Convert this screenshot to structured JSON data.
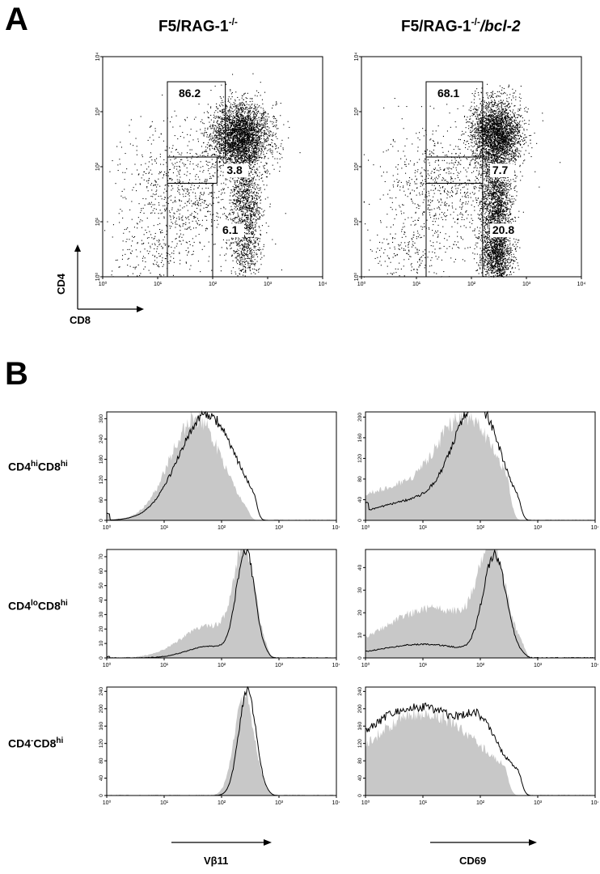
{
  "panels": {
    "a": "A",
    "b": "B"
  },
  "columns": [
    {
      "base": "F5/RAG-1",
      "sup": "-/-",
      "suffix": ""
    },
    {
      "base": "F5/RAG-1",
      "sup": "-/-",
      "suffix": "/bcl-2"
    }
  ],
  "dot_axes": {
    "y": "CD4",
    "x": "CD8"
  },
  "hist_rows": [
    {
      "pre": "CD4",
      "sup1": "hi",
      "mid": "CD8",
      "sup2": "hi"
    },
    {
      "pre": "CD4",
      "sup1": "lo",
      "mid": "CD8",
      "sup2": "hi"
    },
    {
      "pre": "CD4",
      "sup1": "-",
      "mid": "CD8",
      "sup2": "hi"
    }
  ],
  "hist_xlabels": [
    "Vβ11",
    "CD69"
  ],
  "colors": {
    "dots": "#000000",
    "shaded": "#c8c8c8",
    "line": "#000000"
  },
  "chart_data": [
    {
      "type": "scatter",
      "title": "F5/RAG-1-/-",
      "xlabel": "CD8",
      "ylabel": "CD4",
      "scale": "log",
      "xlim": [
        1,
        10000
      ],
      "ylim": [
        1,
        10000
      ],
      "ticks": [
        "10⁰",
        "10¹",
        "10²",
        "10³",
        "10⁴"
      ],
      "gates": [
        {
          "label": "86.2",
          "x": [
            15,
            170
          ],
          "y": [
            150,
            3500
          ]
        },
        {
          "label": "3.8",
          "x": [
            15,
            120
          ],
          "y": [
            50,
            150
          ]
        },
        {
          "label": "6.1",
          "x": [
            15,
            100
          ],
          "y": [
            1,
            50
          ]
        }
      ],
      "clusters": [
        {
          "cx": 2.5,
          "cy": 2.55,
          "sx": 0.26,
          "sy": 0.3,
          "n": 3200
        },
        {
          "cx": 2.6,
          "cy": 1.3,
          "sx": 0.14,
          "sy": 0.45,
          "n": 1000
        },
        {
          "cx": 2.6,
          "cy": 0.4,
          "sx": 0.14,
          "sy": 0.25,
          "n": 300
        },
        {
          "cx": 1.5,
          "cy": 1.5,
          "sx": 0.55,
          "sy": 0.6,
          "n": 800
        },
        {
          "cx": 0.8,
          "cy": 0.4,
          "sx": 0.4,
          "sy": 0.3,
          "n": 180
        }
      ]
    },
    {
      "type": "scatter",
      "title": "F5/RAG-1-/-/bcl-2",
      "xlabel": "CD8",
      "ylabel": "CD4",
      "scale": "log",
      "xlim": [
        1,
        10000
      ],
      "ylim": [
        1,
        10000
      ],
      "ticks": [
        "10⁰",
        "10¹",
        "10²",
        "10³",
        "10⁴"
      ],
      "gates": [
        {
          "label": "68.1",
          "x": [
            15,
            160
          ],
          "y": [
            150,
            3500
          ]
        },
        {
          "label": "7.7",
          "x": [
            15,
            160
          ],
          "y": [
            50,
            150
          ]
        },
        {
          "label": "20.8",
          "x": [
            15,
            160
          ],
          "y": [
            1,
            50
          ]
        }
      ],
      "clusters": [
        {
          "cx": 2.45,
          "cy": 2.6,
          "sx": 0.22,
          "sy": 0.3,
          "n": 2800
        },
        {
          "cx": 2.45,
          "cy": 1.3,
          "sx": 0.14,
          "sy": 0.5,
          "n": 1800
        },
        {
          "cx": 2.45,
          "cy": 0.35,
          "sx": 0.14,
          "sy": 0.25,
          "n": 1000
        },
        {
          "cx": 1.5,
          "cy": 1.6,
          "sx": 0.55,
          "sy": 0.6,
          "n": 800
        },
        {
          "cx": 0.8,
          "cy": 0.4,
          "sx": 0.4,
          "sy": 0.3,
          "n": 180
        }
      ]
    },
    {
      "type": "area",
      "row": "CD4hiCD8hi",
      "column": "F5/RAG-1-/-",
      "xlabel": "Vβ11",
      "scale": "log",
      "xlim": [
        1,
        10000
      ],
      "ylim": [
        0,
        320
      ],
      "yticks": [
        0,
        60,
        120,
        180,
        240,
        300
      ],
      "xticks": [
        "10⁰",
        "10¹",
        "10²",
        "10³",
        "10⁴"
      ],
      "shaded": [
        {
          "m": 1.55,
          "s": 0.45,
          "h": 300
        }
      ],
      "shaded_cut": 2.4,
      "line": [
        {
          "m": 1.75,
          "s": 0.5,
          "h": 310
        }
      ],
      "line_cut": 2.55,
      "base": 20
    },
    {
      "type": "area",
      "row": "CD4hiCD8hi",
      "column": "F5/RAG-1-/-/bcl-2",
      "xlabel": "CD69",
      "scale": "log",
      "xlim": [
        1,
        10000
      ],
      "ylim": [
        0,
        210
      ],
      "yticks": [
        0,
        40,
        80,
        120,
        160,
        200
      ],
      "xticks": [
        "10⁰",
        "10¹",
        "10²",
        "10³",
        "10⁴"
      ],
      "shaded": [
        {
          "m": 1.75,
          "s": 0.55,
          "h": 200
        },
        {
          "m": 0.3,
          "s": 0.6,
          "h": 55
        }
      ],
      "shaded_cut": 2.45,
      "line": [
        {
          "m": 1.95,
          "s": 0.4,
          "h": 205
        },
        {
          "m": 1.0,
          "s": 0.8,
          "h": 40
        }
      ],
      "line_cut": 2.65,
      "base": 35
    },
    {
      "type": "area",
      "row": "CD4loCD8hi",
      "column": "F5/RAG-1-/-",
      "xlabel": "Vβ11",
      "scale": "log",
      "xlim": [
        1,
        10000
      ],
      "ylim": [
        0,
        75
      ],
      "yticks": [
        0,
        10,
        20,
        30,
        40,
        50,
        60,
        70
      ],
      "xticks": [
        "10⁰",
        "10¹",
        "10²",
        "10³",
        "10⁴"
      ],
      "shaded": [
        {
          "m": 2.4,
          "s": 0.18,
          "h": 68
        },
        {
          "m": 1.8,
          "s": 0.5,
          "h": 22
        }
      ],
      "shaded_cut": 2.75,
      "line": [
        {
          "m": 2.42,
          "s": 0.16,
          "h": 73
        },
        {
          "m": 1.8,
          "s": 0.4,
          "h": 8
        }
      ],
      "line_cut": 2.8,
      "base": 1
    },
    {
      "type": "area",
      "row": "CD4loCD8hi",
      "column": "F5/RAG-1-/-/bcl-2",
      "xlabel": "CD69",
      "scale": "log",
      "xlim": [
        1,
        10000
      ],
      "ylim": [
        0,
        48
      ],
      "yticks": [
        0,
        10,
        20,
        30,
        40
      ],
      "xticks": [
        "10⁰",
        "10¹",
        "10²",
        "10³",
        "10⁴"
      ],
      "shaded": [
        {
          "m": 2.2,
          "s": 0.22,
          "h": 42
        },
        {
          "m": 1.2,
          "s": 0.9,
          "h": 22
        }
      ],
      "shaded_cut": 2.7,
      "line": [
        {
          "m": 2.25,
          "s": 0.2,
          "h": 44
        },
        {
          "m": 1.0,
          "s": 0.8,
          "h": 6
        }
      ],
      "line_cut": 2.75,
      "base": 3
    },
    {
      "type": "area",
      "row": "CD4-CD8hi",
      "column": "F5/RAG-1-/-",
      "xlabel": "Vβ11",
      "scale": "log",
      "xlim": [
        1,
        10000
      ],
      "ylim": [
        0,
        250
      ],
      "yticks": [
        0,
        40,
        80,
        120,
        160,
        200,
        240
      ],
      "xticks": [
        "10⁰",
        "10¹",
        "10²",
        "10³",
        "10⁴"
      ],
      "shaded": [
        {
          "m": 2.4,
          "s": 0.17,
          "h": 235
        }
      ],
      "shaded_cut": 2.8,
      "line": [
        {
          "m": 2.45,
          "s": 0.15,
          "h": 245
        }
      ],
      "line_cut": 2.85,
      "base": 0
    },
    {
      "type": "area",
      "row": "CD4-CD8hi",
      "column": "F5/RAG-1-/-/bcl-2",
      "xlabel": "CD69",
      "scale": "log",
      "xlim": [
        1,
        10000
      ],
      "ylim": [
        0,
        250
      ],
      "yticks": [
        0,
        40,
        80,
        120,
        160,
        200,
        240
      ],
      "xticks": [
        "10⁰",
        "10¹",
        "10²",
        "10³",
        "10⁴"
      ],
      "shaded": [
        {
          "m": 1.0,
          "s": 1.0,
          "h": 190
        }
      ],
      "shaded_cut": 2.4,
      "line": [
        {
          "m": 0.9,
          "s": 1.1,
          "h": 205
        },
        {
          "m": 2.0,
          "s": 0.25,
          "h": 60
        }
      ],
      "line_cut": 2.65,
      "base": 0
    }
  ]
}
